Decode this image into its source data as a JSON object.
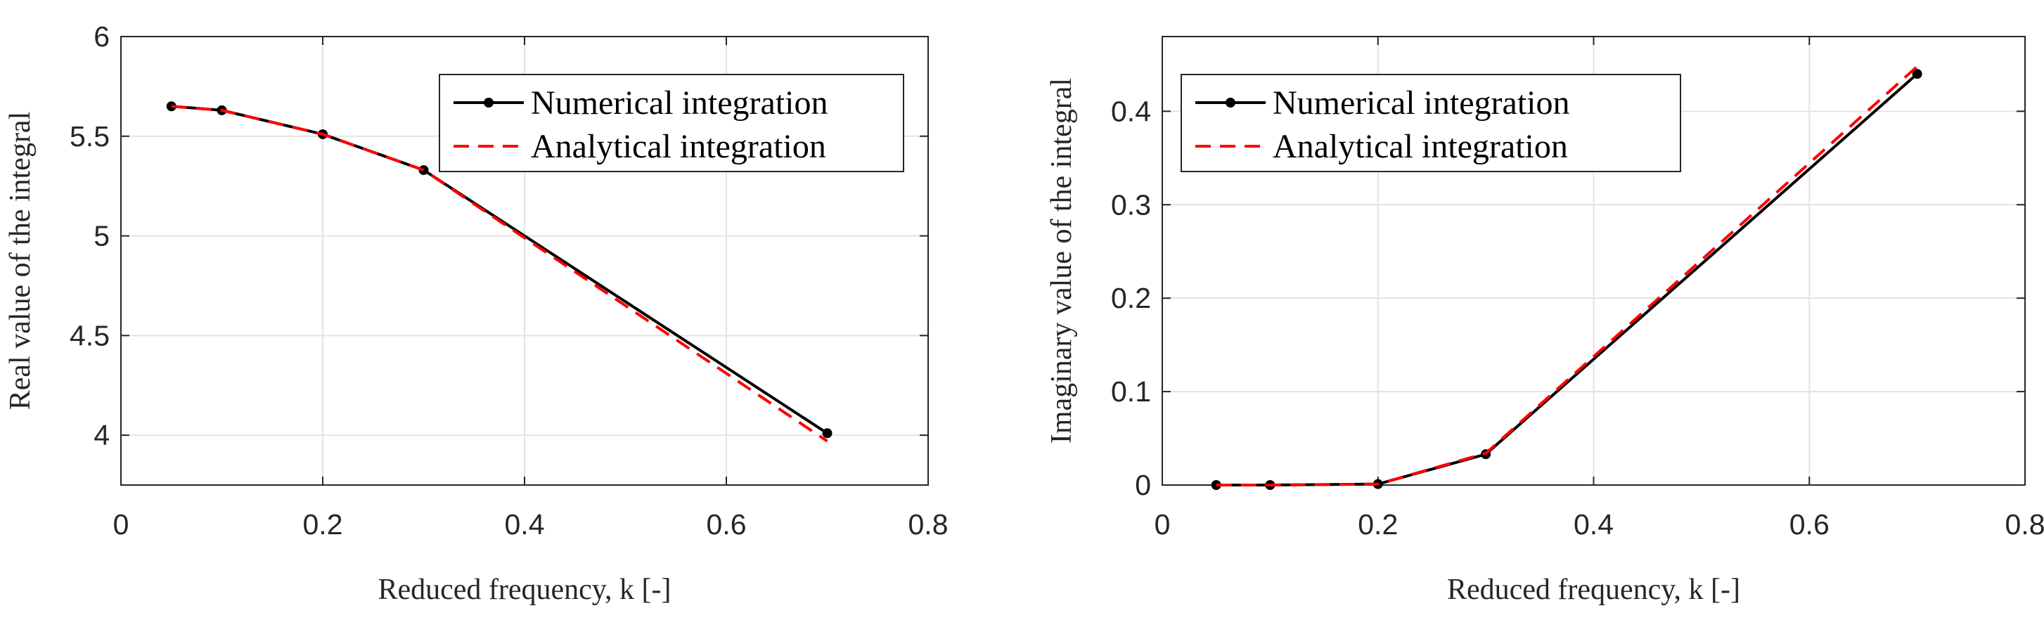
{
  "chart_data": [
    {
      "type": "line",
      "xlabel": "Reduced frequency, k [-]",
      "ylabel": "Real value of the integral",
      "xlim": [
        0,
        0.8
      ],
      "ylim": [
        3.75,
        6
      ],
      "xticks": [
        0,
        0.2,
        0.4,
        0.6,
        0.8
      ],
      "xtick_labels": [
        "0",
        "0.2",
        "0.4",
        "0.6",
        "0.8"
      ],
      "yticks": [
        4,
        4.5,
        5,
        5.5,
        6
      ],
      "ytick_labels": [
        "4",
        "4.5",
        "5",
        "5.5",
        "6"
      ],
      "grid": true,
      "legend_position": "top-right",
      "series": [
        {
          "name": "Numerical integration",
          "style": "solid-markers",
          "color": "#000000",
          "x": [
            0.05,
            0.1,
            0.2,
            0.3,
            0.7
          ],
          "y": [
            5.65,
            5.63,
            5.51,
            5.33,
            4.01
          ]
        },
        {
          "name": "Analytical integration",
          "style": "dashed",
          "color": "#ff0000",
          "x": [
            0.05,
            0.1,
            0.2,
            0.3,
            0.7
          ],
          "y": [
            5.65,
            5.63,
            5.51,
            5.33,
            3.97
          ]
        }
      ]
    },
    {
      "type": "line",
      "xlabel": "Reduced frequency, k [-]",
      "ylabel": "Imaginary value of the integral",
      "xlim": [
        0,
        0.8
      ],
      "ylim": [
        0,
        0.48
      ],
      "xticks": [
        0,
        0.2,
        0.4,
        0.6,
        0.8
      ],
      "xtick_labels": [
        "0",
        "0.2",
        "0.4",
        "0.6",
        "0.8"
      ],
      "yticks": [
        0,
        0.1,
        0.2,
        0.3,
        0.4
      ],
      "ytick_labels": [
        "0",
        "0.1",
        "0.2",
        "0.3",
        "0.4"
      ],
      "grid": true,
      "legend_position": "top-left",
      "series": [
        {
          "name": "Numerical integration",
          "style": "solid-markers",
          "color": "#000000",
          "x": [
            0.05,
            0.1,
            0.2,
            0.3,
            0.7
          ],
          "y": [
            0.0,
            0.0,
            0.001,
            0.033,
            0.44
          ]
        },
        {
          "name": "Analytical integration",
          "style": "dashed",
          "color": "#ff0000",
          "x": [
            0.05,
            0.1,
            0.2,
            0.3,
            0.7
          ],
          "y": [
            0.0,
            0.0,
            0.001,
            0.034,
            0.448
          ]
        }
      ]
    }
  ]
}
